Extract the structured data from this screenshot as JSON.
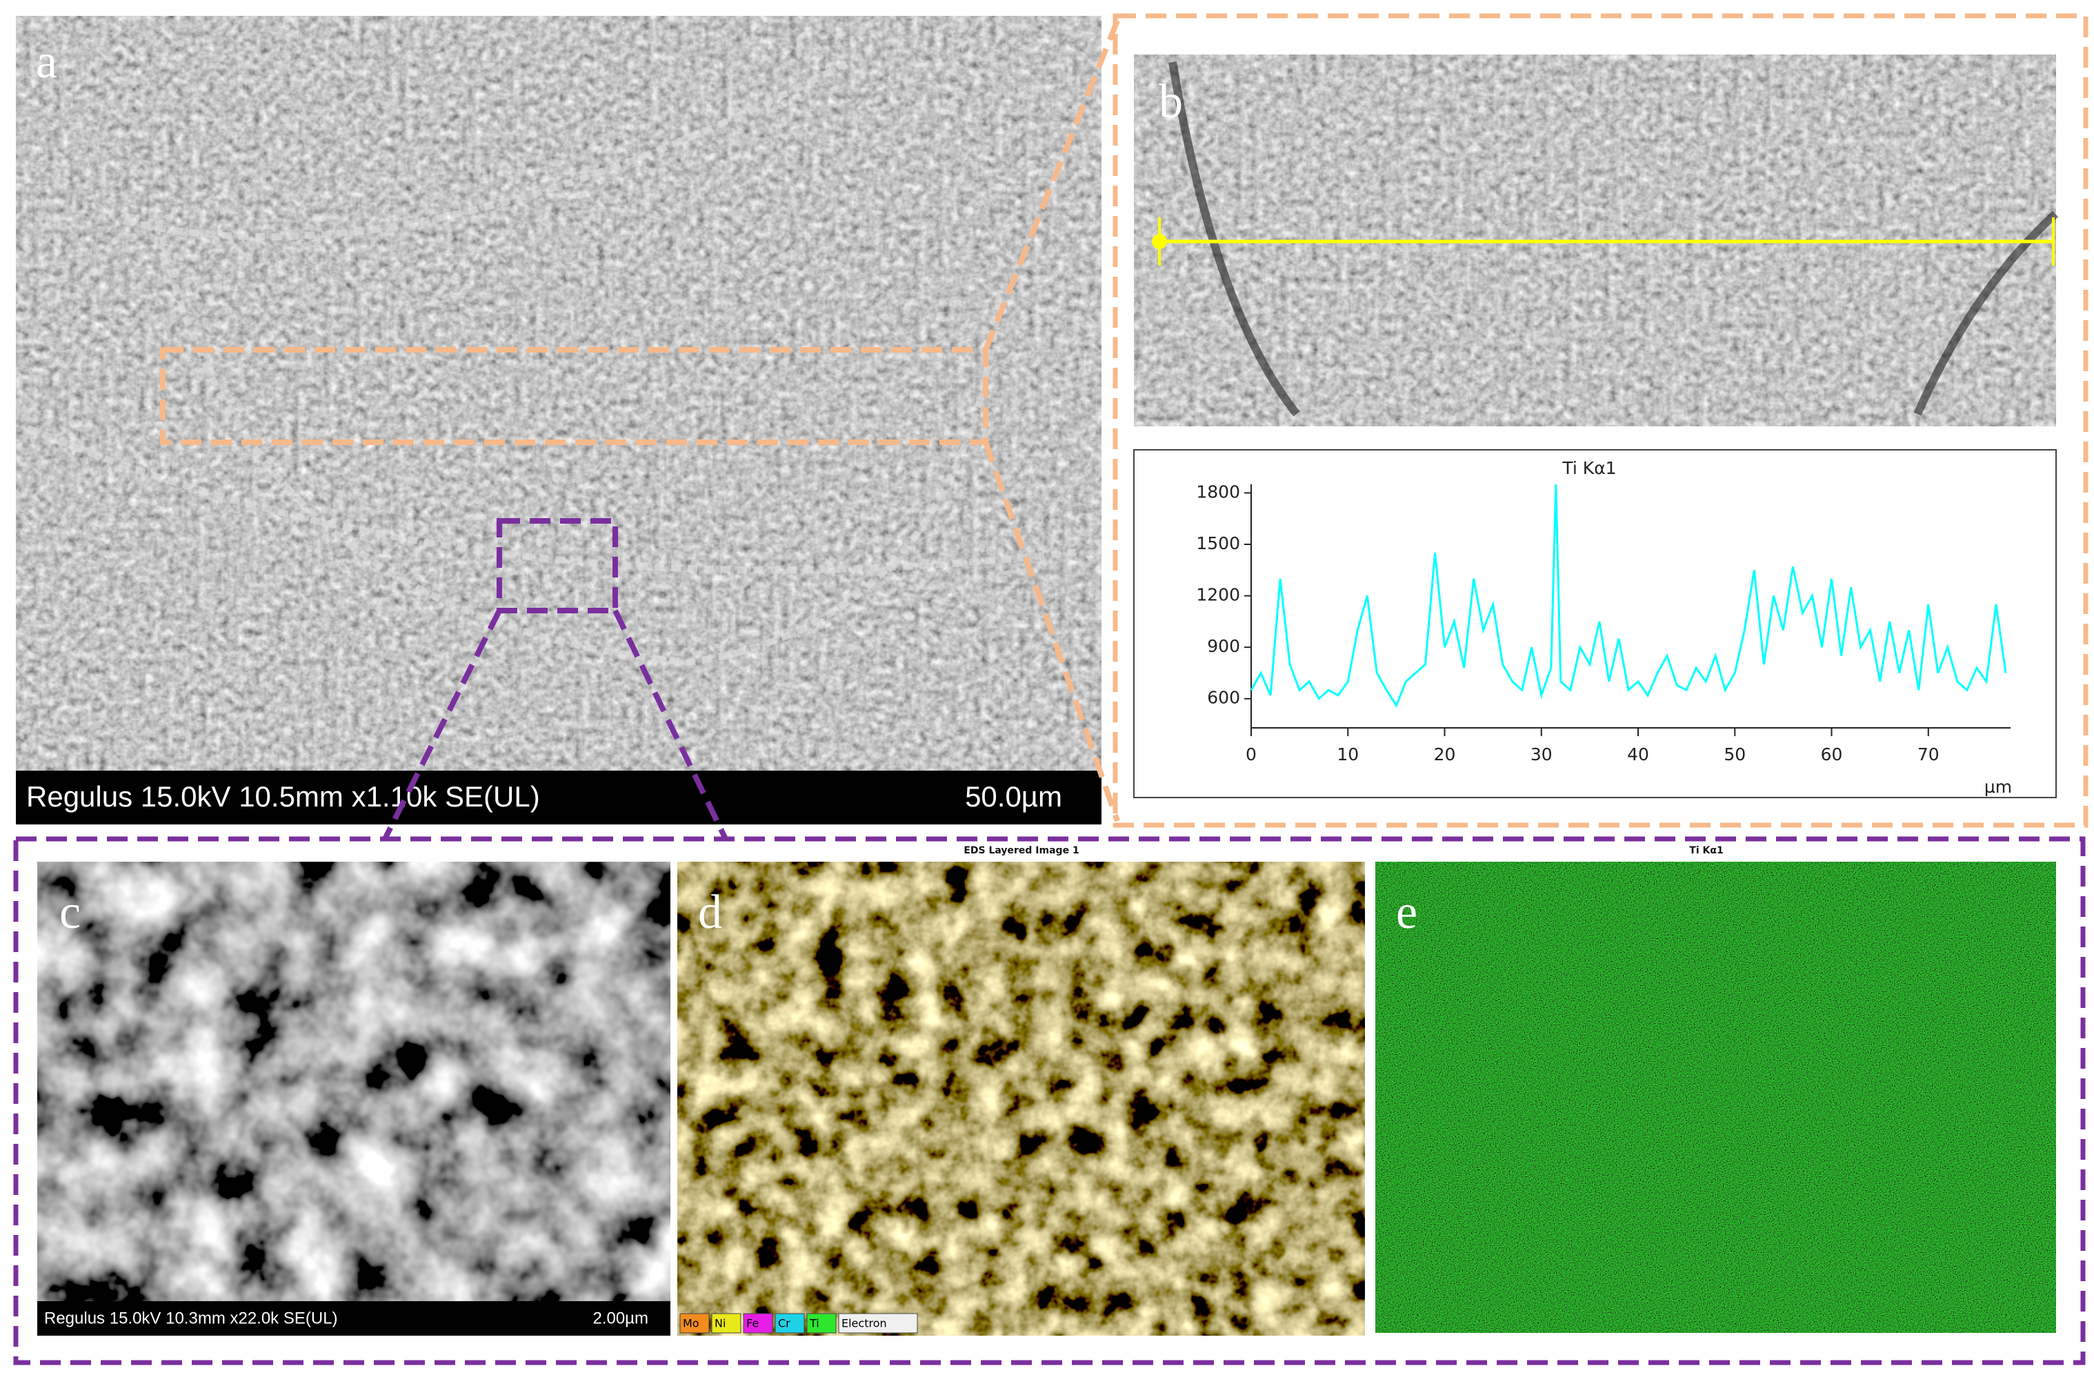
{
  "panels": {
    "a": {
      "label": "a",
      "info": "Regulus 15.0kV 10.5mm x1.10k SE(UL)",
      "scale": "50.0µm"
    },
    "b": {
      "label": "b"
    },
    "c": {
      "label": "c",
      "info": "Regulus 15.0kV 10.3mm x22.0k SE(UL)",
      "scale": "2.00µm"
    },
    "d": {
      "label": "d",
      "title": "EDS Layered Image 1",
      "legend": [
        {
          "name": "Mo",
          "color": "#f28c1e"
        },
        {
          "name": "Ni",
          "color": "#e8e81a"
        },
        {
          "name": "Fe",
          "color": "#e61ee6"
        },
        {
          "name": "Cr",
          "color": "#1ed2e6"
        },
        {
          "name": "Ti",
          "color": "#2ee62e"
        },
        {
          "name": "Electron",
          "color": "#f0f0f0"
        }
      ]
    },
    "e": {
      "label": "e",
      "title": "Ti Kα1"
    }
  },
  "chart_data": {
    "type": "line",
    "title": "Ti Kα1",
    "x_label": "µm",
    "color": "#00ffff",
    "x": [
      0,
      1,
      2,
      3,
      4,
      5,
      6,
      7,
      8,
      9,
      10,
      11,
      12,
      13,
      14,
      15,
      16,
      17,
      18,
      19,
      20,
      21,
      22,
      23,
      24,
      25,
      26,
      27,
      28,
      29,
      30,
      31,
      31.5,
      32,
      33,
      34,
      35,
      36,
      37,
      38,
      39,
      40,
      41,
      42,
      43,
      44,
      45,
      46,
      47,
      48,
      49,
      50,
      51,
      52,
      53,
      54,
      55,
      56,
      57,
      58,
      59,
      60,
      61,
      62,
      63,
      64,
      65,
      66,
      67,
      68,
      69,
      70,
      71,
      72,
      73,
      74,
      75,
      76,
      77,
      78
    ],
    "values": [
      650,
      750,
      620,
      1300,
      800,
      650,
      700,
      600,
      650,
      620,
      700,
      1000,
      1200,
      750,
      650,
      560,
      700,
      750,
      800,
      1450,
      900,
      1050,
      780,
      1300,
      1000,
      1150,
      800,
      700,
      650,
      900,
      620,
      780,
      1850,
      700,
      650,
      900,
      800,
      1050,
      700,
      950,
      650,
      700,
      620,
      750,
      850,
      680,
      650,
      780,
      700,
      850,
      650,
      750,
      1000,
      1350,
      800,
      1200,
      1000,
      1370,
      1100,
      1200,
      900,
      1300,
      850,
      1250,
      900,
      1000,
      700,
      1050,
      750,
      1000,
      650,
      1150,
      750,
      900,
      700,
      650,
      780,
      700,
      1150,
      750
    ],
    "xlim": [
      0,
      78.5
    ],
    "xticks": [
      0,
      10,
      20,
      30,
      40,
      50,
      60,
      70
    ],
    "ylim": [
      430,
      1850
    ],
    "yticks": [
      600,
      900,
      1200,
      1500,
      1800
    ]
  }
}
